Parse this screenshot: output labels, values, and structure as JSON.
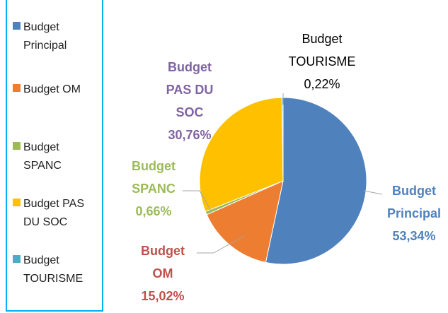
{
  "chart_data": {
    "type": "pie",
    "categories": [
      "Budget Principal",
      "Budget OM",
      "Budget SPANC",
      "Budget PAS DU SOC",
      "Budget TOURISME"
    ],
    "values": [
      53.34,
      15.02,
      0.66,
      30.76,
      0.22
    ],
    "value_labels": [
      "53,34%",
      "15,02%",
      "0,66%",
      "30,76%",
      "0,22%"
    ],
    "colors": [
      "#4f81bd",
      "#ed7d31",
      "#9bbb59",
      "#ffc000",
      "#4bacc6"
    ],
    "label_colors": [
      "#4f81bd",
      "#c0504d",
      "#9bbb59",
      "#8064a2",
      "#000000"
    ]
  }
}
